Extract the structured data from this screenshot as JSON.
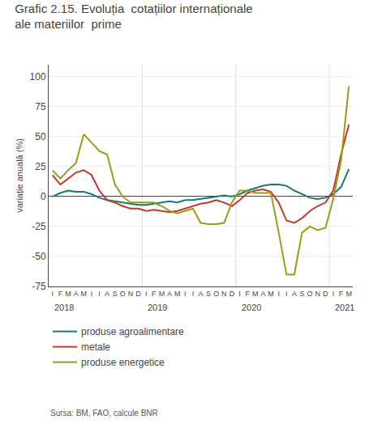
{
  "chart_data": {
    "type": "line",
    "title": "Grafic 2.15. Evoluția  cotațiilor internaționale\nale materiilor  prime",
    "y_label": "variație anuală (%)",
    "source": "Sursa: BM, FAO, calcule BNR",
    "categories": [
      "I",
      "F",
      "M",
      "A",
      "M",
      "I",
      "I",
      "A",
      "S",
      "O",
      "N",
      "D",
      "I",
      "F",
      "M",
      "A",
      "M",
      "I",
      "I",
      "A",
      "S",
      "O",
      "N",
      "D",
      "I",
      "F",
      "M",
      "A",
      "M",
      "I",
      "I",
      "A",
      "S",
      "O",
      "N",
      "D",
      "I",
      "F",
      "M"
    ],
    "annotations": [
      {
        "text": "2018",
        "x": 0
      },
      {
        "text": "2019",
        "x": 12
      },
      {
        "text": "2020",
        "x": 24
      },
      {
        "text": "2021",
        "x": 36
      }
    ],
    "series": [
      {
        "name": "produse agroalimentare",
        "color": "#1A7874",
        "values": [
          0,
          3,
          5,
          4,
          4,
          2,
          -1,
          -3,
          -4,
          -5,
          -6,
          -7,
          -7,
          -6,
          -5,
          -4,
          -5,
          -3,
          -3,
          -2,
          -1,
          0,
          1,
          0,
          2,
          5,
          7,
          9,
          10,
          10,
          9,
          5,
          2,
          -1,
          -2,
          -1,
          2,
          8,
          23
        ]
      },
      {
        "name": "metale",
        "color": "#C0392B",
        "values": [
          18,
          10,
          15,
          20,
          22,
          18,
          5,
          -3,
          -5,
          -8,
          -10,
          -10,
          -12,
          -11,
          -12,
          -13,
          -12,
          -10,
          -8,
          -6,
          -5,
          -3,
          -5,
          -8,
          -3,
          3,
          5,
          6,
          4,
          -5,
          -20,
          -22,
          -18,
          -12,
          -8,
          -5,
          5,
          35,
          60
        ]
      },
      {
        "name": "produse energetice",
        "color": "#9B9B1A",
        "values": [
          22,
          15,
          22,
          28,
          52,
          45,
          38,
          35,
          10,
          0,
          -5,
          -5,
          -5,
          -5,
          -8,
          -12,
          -14,
          -12,
          -10,
          -22,
          -23,
          -23,
          -22,
          -5,
          5,
          5,
          3,
          3,
          3,
          -30,
          -65,
          -65,
          -30,
          -25,
          -28,
          -26,
          -2,
          30,
          92
        ]
      }
    ],
    "ylim": [
      -75,
      110
    ],
    "yticks": [
      -75,
      -50,
      -25,
      0,
      25,
      50,
      75,
      100
    ],
    "grid": true,
    "legend": "bottom"
  }
}
